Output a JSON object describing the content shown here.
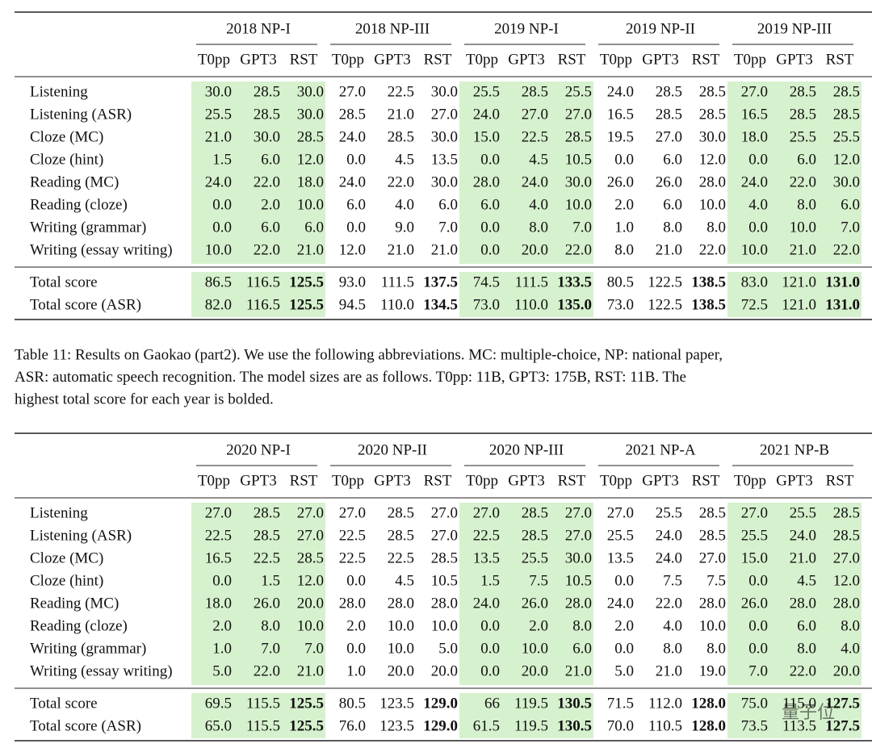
{
  "shade_color": "#d6f1cd",
  "tables": [
    {
      "groups": [
        "2018 NP-I",
        "2018 NP-III",
        "2019 NP-I",
        "2019 NP-II",
        "2019 NP-III"
      ],
      "models": [
        "T0pp",
        "GPT3",
        "RST"
      ],
      "shaded_groups": [
        0,
        2,
        4
      ],
      "rows": [
        {
          "label": "Listening",
          "cells": [
            "30.0",
            "28.5",
            "30.0",
            "27.0",
            "22.5",
            "30.0",
            "25.5",
            "28.5",
            "25.5",
            "24.0",
            "28.5",
            "28.5",
            "27.0",
            "28.5",
            "28.5"
          ]
        },
        {
          "label": "Listening (ASR)",
          "cells": [
            "25.5",
            "28.5",
            "30.0",
            "28.5",
            "21.0",
            "27.0",
            "24.0",
            "27.0",
            "27.0",
            "16.5",
            "28.5",
            "28.5",
            "16.5",
            "28.5",
            "28.5"
          ]
        },
        {
          "label": "Cloze (MC)",
          "cells": [
            "21.0",
            "30.0",
            "28.5",
            "24.0",
            "28.5",
            "30.0",
            "15.0",
            "22.5",
            "28.5",
            "19.5",
            "27.0",
            "30.0",
            "18.0",
            "25.5",
            "25.5"
          ]
        },
        {
          "label": "Cloze (hint)",
          "cells": [
            "1.5",
            "6.0",
            "12.0",
            "0.0",
            "4.5",
            "13.5",
            "0.0",
            "4.5",
            "10.5",
            "0.0",
            "6.0",
            "12.0",
            "0.0",
            "6.0",
            "12.0"
          ]
        },
        {
          "label": "Reading (MC)",
          "cells": [
            "24.0",
            "22.0",
            "18.0",
            "24.0",
            "22.0",
            "30.0",
            "28.0",
            "24.0",
            "30.0",
            "26.0",
            "26.0",
            "28.0",
            "24.0",
            "22.0",
            "30.0"
          ]
        },
        {
          "label": "Reading (cloze)",
          "cells": [
            "0.0",
            "2.0",
            "10.0",
            "6.0",
            "4.0",
            "6.0",
            "6.0",
            "4.0",
            "10.0",
            "2.0",
            "6.0",
            "10.0",
            "4.0",
            "8.0",
            "6.0"
          ]
        },
        {
          "label": "Writing (grammar)",
          "cells": [
            "0.0",
            "6.0",
            "6.0",
            "0.0",
            "9.0",
            "7.0",
            "0.0",
            "8.0",
            "7.0",
            "1.0",
            "8.0",
            "8.0",
            "0.0",
            "10.0",
            "7.0"
          ]
        },
        {
          "label": "Writing (essay writing)",
          "cells": [
            "10.0",
            "22.0",
            "21.0",
            "12.0",
            "21.0",
            "21.0",
            "0.0",
            "20.0",
            "22.0",
            "8.0",
            "21.0",
            "22.0",
            "10.0",
            "21.0",
            "22.0"
          ]
        }
      ],
      "totals": [
        {
          "label": "Total score",
          "cells": [
            "86.5",
            "116.5",
            "125.5",
            "93.0",
            "111.5",
            "137.5",
            "74.5",
            "111.5",
            "133.5",
            "80.5",
            "122.5",
            "138.5",
            "83.0",
            "121.0",
            "131.0"
          ]
        },
        {
          "label": "Total score (ASR)",
          "cells": [
            "82.0",
            "116.5",
            "125.5",
            "94.5",
            "110.0",
            "134.5",
            "73.0",
            "110.0",
            "135.0",
            "73.0",
            "122.5",
            "138.5",
            "72.5",
            "121.0",
            "131.0"
          ]
        }
      ],
      "bold_cols": [
        2,
        5,
        8,
        11,
        14
      ]
    },
    {
      "groups": [
        "2020 NP-I",
        "2020 NP-II",
        "2020 NP-III",
        "2021 NP-A",
        "2021 NP-B"
      ],
      "models": [
        "T0pp",
        "GPT3",
        "RST"
      ],
      "shaded_groups": [
        0,
        2,
        4
      ],
      "rows": [
        {
          "label": "Listening",
          "cells": [
            "27.0",
            "28.5",
            "27.0",
            "27.0",
            "28.5",
            "27.0",
            "27.0",
            "28.5",
            "27.0",
            "27.0",
            "25.5",
            "28.5",
            "27.0",
            "25.5",
            "28.5"
          ]
        },
        {
          "label": "Listening (ASR)",
          "cells": [
            "22.5",
            "28.5",
            "27.0",
            "22.5",
            "28.5",
            "27.0",
            "22.5",
            "28.5",
            "27.0",
            "25.5",
            "24.0",
            "28.5",
            "25.5",
            "24.0",
            "28.5"
          ]
        },
        {
          "label": "Cloze (MC)",
          "cells": [
            "16.5",
            "22.5",
            "28.5",
            "22.5",
            "22.5",
            "28.5",
            "13.5",
            "25.5",
            "30.0",
            "13.5",
            "24.0",
            "27.0",
            "15.0",
            "21.0",
            "27.0"
          ]
        },
        {
          "label": "Cloze (hint)",
          "cells": [
            "0.0",
            "1.5",
            "12.0",
            "0.0",
            "4.5",
            "10.5",
            "1.5",
            "7.5",
            "10.5",
            "0.0",
            "7.5",
            "7.5",
            "0.0",
            "4.5",
            "12.0"
          ]
        },
        {
          "label": "Reading (MC)",
          "cells": [
            "18.0",
            "26.0",
            "20.0",
            "28.0",
            "28.0",
            "28.0",
            "24.0",
            "26.0",
            "28.0",
            "24.0",
            "22.0",
            "28.0",
            "26.0",
            "28.0",
            "28.0"
          ]
        },
        {
          "label": "Reading (cloze)",
          "cells": [
            "2.0",
            "8.0",
            "10.0",
            "2.0",
            "10.0",
            "10.0",
            "0.0",
            "2.0",
            "8.0",
            "2.0",
            "4.0",
            "10.0",
            "0.0",
            "6.0",
            "8.0"
          ]
        },
        {
          "label": "Writing (grammar)",
          "cells": [
            "1.0",
            "7.0",
            "7.0",
            "0.0",
            "10.0",
            "5.0",
            "0.0",
            "10.0",
            "6.0",
            "0.0",
            "8.0",
            "8.0",
            "0.0",
            "8.0",
            "4.0"
          ]
        },
        {
          "label": "Writing (essay writing)",
          "cells": [
            "5.0",
            "22.0",
            "21.0",
            "1.0",
            "20.0",
            "20.0",
            "0.0",
            "20.0",
            "21.0",
            "5.0",
            "21.0",
            "19.0",
            "7.0",
            "22.0",
            "20.0"
          ]
        }
      ],
      "totals": [
        {
          "label": "Total score",
          "cells": [
            "69.5",
            "115.5",
            "125.5",
            "80.5",
            "123.5",
            "129.0",
            "66",
            "119.5",
            "130.5",
            "71.5",
            "112.0",
            "128.0",
            "75.0",
            "115.0",
            "127.5"
          ]
        },
        {
          "label": "Total score (ASR)",
          "cells": [
            "65.0",
            "115.5",
            "125.5",
            "76.0",
            "123.5",
            "129.0",
            "61.5",
            "119.5",
            "130.5",
            "70.0",
            "110.5",
            "128.0",
            "73.5",
            "113.5",
            "127.5"
          ]
        }
      ],
      "bold_cols": [
        2,
        5,
        8,
        11,
        14
      ]
    }
  ],
  "caption": [
    "Table 11: Results on Gaokao (part2). We use the following abbreviations. MC: multiple-choice, NP: national paper,",
    "ASR: automatic speech recognition.  The model sizes are as follows.  T0pp: 11B, GPT3: 175B, RST: 11B.  The",
    "highest total score for each year is bolded."
  ],
  "watermark": "量子位"
}
